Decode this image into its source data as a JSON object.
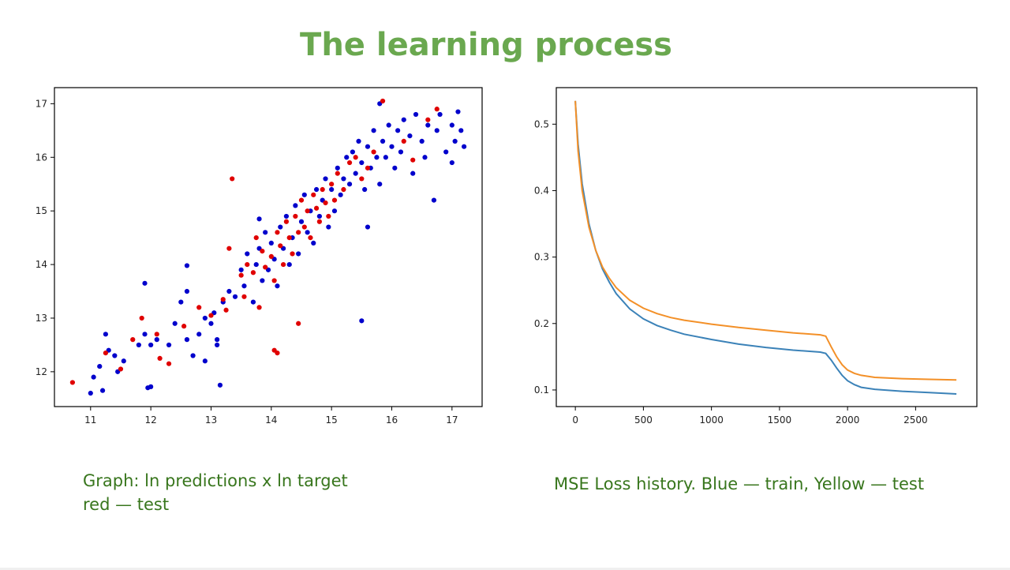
{
  "slide": {
    "title": "The learning process",
    "caption_left_line1": "Graph: ln predictions x ln target",
    "caption_left_line2": "red — test",
    "caption_right": "MSE Loss history. Blue — train, Yellow — test"
  },
  "colors": {
    "title": "#6aa84f",
    "caption": "#38761d",
    "train_points": "#0000cc",
    "test_points": "#e00000",
    "train_line": "#3b82b8",
    "test_line": "#f39028"
  },
  "chart_data": [
    {
      "type": "scatter",
      "xlim": [
        10.4,
        17.5
      ],
      "ylim": [
        11.35,
        17.3
      ],
      "xticks": [
        11,
        12,
        13,
        14,
        15,
        16,
        17
      ],
      "yticks": [
        12,
        13,
        14,
        15,
        16,
        17
      ],
      "grid": false,
      "series": [
        {
          "points": [
            [
              11.0,
              11.6
            ],
            [
              11.2,
              11.65
            ],
            [
              11.05,
              11.9
            ],
            [
              11.15,
              12.1
            ],
            [
              11.3,
              12.4
            ],
            [
              11.4,
              12.3
            ],
            [
              11.55,
              12.2
            ],
            [
              11.45,
              12.0
            ],
            [
              11.25,
              12.7
            ],
            [
              11.8,
              12.5
            ],
            [
              11.9,
              12.7
            ],
            [
              12.0,
              12.5
            ],
            [
              12.1,
              12.6
            ],
            [
              11.9,
              13.65
            ],
            [
              11.95,
              11.7
            ],
            [
              12.0,
              11.72
            ],
            [
              12.3,
              12.5
            ],
            [
              12.4,
              12.9
            ],
            [
              12.5,
              13.3
            ],
            [
              12.6,
              13.5
            ],
            [
              12.6,
              12.6
            ],
            [
              12.7,
              12.3
            ],
            [
              12.8,
              12.7
            ],
            [
              12.9,
              13.0
            ],
            [
              13.0,
              12.9
            ],
            [
              13.05,
              13.1
            ],
            [
              13.1,
              12.6
            ],
            [
              13.2,
              13.3
            ],
            [
              13.3,
              13.5
            ],
            [
              13.15,
              11.75
            ],
            [
              12.6,
              13.98
            ],
            [
              13.4,
              13.4
            ],
            [
              13.5,
              13.9
            ],
            [
              13.55,
              13.6
            ],
            [
              13.6,
              14.2
            ],
            [
              13.7,
              13.3
            ],
            [
              13.75,
              14.0
            ],
            [
              13.8,
              14.3
            ],
            [
              13.85,
              13.7
            ],
            [
              13.9,
              14.6
            ],
            [
              13.95,
              13.9
            ],
            [
              14.0,
              14.4
            ],
            [
              14.05,
              14.1
            ],
            [
              14.1,
              13.6
            ],
            [
              14.15,
              14.7
            ],
            [
              14.2,
              14.3
            ],
            [
              14.25,
              14.9
            ],
            [
              14.3,
              14.0
            ],
            [
              14.35,
              14.5
            ],
            [
              14.4,
              15.1
            ],
            [
              14.45,
              14.2
            ],
            [
              14.5,
              14.8
            ],
            [
              14.55,
              15.3
            ],
            [
              14.6,
              14.6
            ],
            [
              14.65,
              15.0
            ],
            [
              14.7,
              14.4
            ],
            [
              14.75,
              15.4
            ],
            [
              14.8,
              14.9
            ],
            [
              14.85,
              15.2
            ],
            [
              14.9,
              15.6
            ],
            [
              14.95,
              14.7
            ],
            [
              15.0,
              15.4
            ],
            [
              15.05,
              15.0
            ],
            [
              15.1,
              15.8
            ],
            [
              15.15,
              15.3
            ],
            [
              15.2,
              15.6
            ],
            [
              15.25,
              16.0
            ],
            [
              15.3,
              15.5
            ],
            [
              15.35,
              16.1
            ],
            [
              15.4,
              15.7
            ],
            [
              15.45,
              16.3
            ],
            [
              15.5,
              15.9
            ],
            [
              15.55,
              15.4
            ],
            [
              15.6,
              16.2
            ],
            [
              15.65,
              15.8
            ],
            [
              15.7,
              16.5
            ],
            [
              15.75,
              16.0
            ],
            [
              15.8,
              15.5
            ],
            [
              15.85,
              16.3
            ],
            [
              15.9,
              16.0
            ],
            [
              15.95,
              16.6
            ],
            [
              16.0,
              16.2
            ],
            [
              16.05,
              15.8
            ],
            [
              16.1,
              16.5
            ],
            [
              16.15,
              16.1
            ],
            [
              16.2,
              16.7
            ],
            [
              16.3,
              16.4
            ],
            [
              16.35,
              15.7
            ],
            [
              16.4,
              16.8
            ],
            [
              16.5,
              16.3
            ],
            [
              16.55,
              16.0
            ],
            [
              16.6,
              16.6
            ],
            [
              16.7,
              15.2
            ],
            [
              16.75,
              16.5
            ],
            [
              16.8,
              16.8
            ],
            [
              16.9,
              16.1
            ],
            [
              17.0,
              16.6
            ],
            [
              17.05,
              16.3
            ],
            [
              17.1,
              16.85
            ],
            [
              17.15,
              16.5
            ],
            [
              17.2,
              16.2
            ],
            [
              17.0,
              15.9
            ],
            [
              15.5,
              12.95
            ],
            [
              15.8,
              17.0
            ],
            [
              15.6,
              14.7
            ],
            [
              13.8,
              14.85
            ],
            [
              13.1,
              12.5
            ],
            [
              12.9,
              12.2
            ]
          ]
        },
        {
          "points": [
            [
              10.7,
              11.8
            ],
            [
              11.25,
              12.35
            ],
            [
              11.5,
              12.05
            ],
            [
              11.7,
              12.6
            ],
            [
              11.85,
              13.0
            ],
            [
              12.1,
              12.7
            ],
            [
              12.15,
              12.25
            ],
            [
              12.3,
              12.15
            ],
            [
              12.55,
              12.85
            ],
            [
              12.8,
              13.2
            ],
            [
              13.0,
              13.05
            ],
            [
              13.2,
              13.35
            ],
            [
              13.3,
              14.3
            ],
            [
              13.5,
              13.8
            ],
            [
              13.55,
              13.4
            ],
            [
              13.6,
              14.0
            ],
            [
              13.7,
              13.85
            ],
            [
              13.75,
              14.5
            ],
            [
              13.8,
              13.2
            ],
            [
              13.85,
              14.25
            ],
            [
              13.9,
              13.95
            ],
            [
              14.0,
              14.15
            ],
            [
              14.05,
              13.7
            ],
            [
              14.1,
              14.6
            ],
            [
              14.15,
              14.35
            ],
            [
              14.2,
              14.0
            ],
            [
              14.25,
              14.8
            ],
            [
              14.3,
              14.5
            ],
            [
              14.35,
              14.2
            ],
            [
              14.4,
              14.9
            ],
            [
              14.45,
              14.6
            ],
            [
              14.5,
              15.2
            ],
            [
              14.55,
              14.7
            ],
            [
              14.6,
              15.0
            ],
            [
              14.65,
              14.5
            ],
            [
              14.7,
              15.3
            ],
            [
              14.75,
              15.05
            ],
            [
              14.8,
              14.8
            ],
            [
              14.85,
              15.4
            ],
            [
              14.9,
              15.15
            ],
            [
              14.95,
              14.9
            ],
            [
              15.0,
              15.5
            ],
            [
              15.05,
              15.2
            ],
            [
              15.1,
              15.7
            ],
            [
              15.2,
              15.4
            ],
            [
              15.3,
              15.9
            ],
            [
              15.4,
              16.0
            ],
            [
              15.5,
              15.6
            ],
            [
              15.6,
              15.8
            ],
            [
              15.7,
              16.1
            ],
            [
              15.85,
              17.05
            ],
            [
              16.2,
              16.3
            ],
            [
              16.35,
              15.95
            ],
            [
              16.6,
              16.7
            ],
            [
              16.75,
              16.9
            ],
            [
              14.05,
              12.4
            ],
            [
              14.1,
              12.35
            ],
            [
              14.45,
              12.9
            ],
            [
              13.35,
              15.6
            ],
            [
              13.25,
              13.15
            ]
          ]
        }
      ]
    },
    {
      "type": "line",
      "xlim": [
        -140,
        2950
      ],
      "ylim": [
        0.075,
        0.555
      ],
      "xticks": [
        0,
        500,
        1000,
        1500,
        2000,
        2500
      ],
      "yticks": [
        0.1,
        0.2,
        0.3,
        0.4,
        0.5
      ],
      "grid": false,
      "series": [
        {
          "x": [
            0,
            20,
            50,
            100,
            150,
            200,
            250,
            300,
            400,
            500,
            600,
            700,
            800,
            1000,
            1200,
            1400,
            1600,
            1800,
            1840,
            1880,
            1920,
            1960,
            2000,
            2050,
            2100,
            2200,
            2400,
            2600,
            2800
          ],
          "y": [
            0.535,
            0.47,
            0.41,
            0.35,
            0.31,
            0.282,
            0.262,
            0.245,
            0.222,
            0.207,
            0.197,
            0.19,
            0.184,
            0.176,
            0.169,
            0.164,
            0.16,
            0.157,
            0.155,
            0.145,
            0.133,
            0.122,
            0.114,
            0.108,
            0.104,
            0.101,
            0.098,
            0.096,
            0.094
          ]
        },
        {
          "x": [
            0,
            20,
            50,
            100,
            150,
            200,
            250,
            300,
            400,
            500,
            600,
            700,
            800,
            1000,
            1200,
            1400,
            1600,
            1800,
            1840,
            1880,
            1920,
            1960,
            2000,
            2050,
            2100,
            2200,
            2400,
            2600,
            2800
          ],
          "y": [
            0.535,
            0.46,
            0.4,
            0.345,
            0.31,
            0.285,
            0.268,
            0.254,
            0.235,
            0.223,
            0.215,
            0.209,
            0.205,
            0.199,
            0.194,
            0.19,
            0.186,
            0.183,
            0.181,
            0.165,
            0.15,
            0.138,
            0.13,
            0.125,
            0.122,
            0.119,
            0.117,
            0.116,
            0.115
          ]
        }
      ]
    }
  ]
}
